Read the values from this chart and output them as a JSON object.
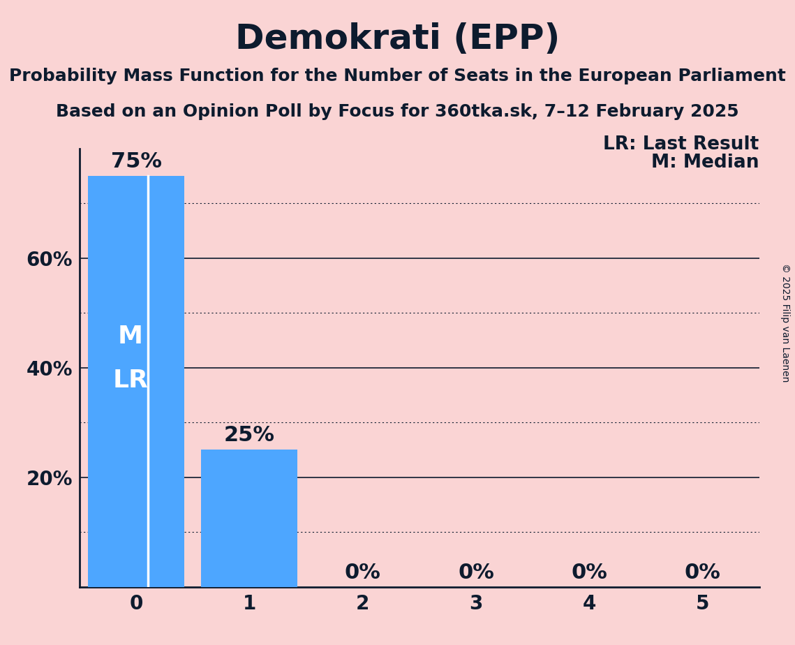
{
  "title": "Demokrati (EPP)",
  "subtitle1": "Probability Mass Function for the Number of Seats in the European Parliament",
  "subtitle2": "Based on an Opinion Poll by Focus for 360tka.sk, 7–12 February 2025",
  "copyright": "© 2025 Filip van Laenen",
  "categories": [
    0,
    1,
    2,
    3,
    4,
    5
  ],
  "values": [
    0.75,
    0.25,
    0.0,
    0.0,
    0.0,
    0.0
  ],
  "bar_color": "#4DA6FF",
  "background_color": "#FAD4D4",
  "text_color": "#0D1B2E",
  "ylim": [
    0,
    0.8
  ],
  "yticks": [
    0.2,
    0.4,
    0.6
  ],
  "ytick_labels": [
    "20%",
    "40%",
    "60%"
  ],
  "dotted_yticks": [
    0.1,
    0.3,
    0.5,
    0.7
  ],
  "legend_lr": "LR: Last Result",
  "legend_m": "M: Median",
  "median": 0,
  "last_result": 0,
  "title_fontsize": 36,
  "subtitle_fontsize": 18,
  "tick_fontsize": 20,
  "bar_label_fontsize": 22,
  "inside_label_fontsize": 26,
  "legend_fontsize": 19,
  "copyright_fontsize": 10
}
